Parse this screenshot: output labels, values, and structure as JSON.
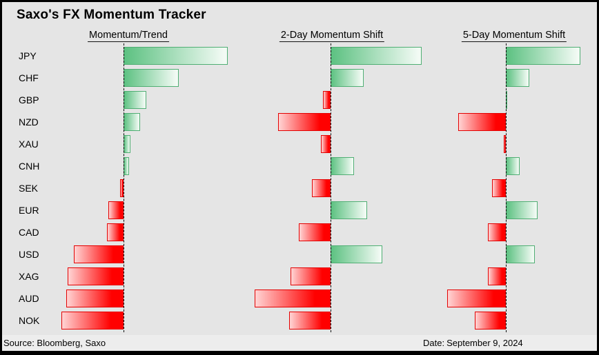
{
  "title": "Saxo's FX Momentum Tracker",
  "footer": {
    "source": "Source: Bloomberg, Saxo",
    "date_label": "Date:",
    "date_value": "September 9, 2024"
  },
  "colors": {
    "background": "#e5e5e5",
    "footer_background": "#ededed",
    "frame": "#000000",
    "positive_border": "#4fae73",
    "positive_fill_start": "#5cc181",
    "positive_fill_end": "#f2faf4",
    "negative_border": "#e30000",
    "negative_fill_start": "#ffd4d4",
    "negative_fill_end": "#ff0000",
    "zero_line": "#000000"
  },
  "chart_data": {
    "type": "bar",
    "orientation": "horizontal",
    "title": "Saxo's FX Momentum Tracker",
    "categories": [
      "JPY",
      "CHF",
      "GBP",
      "NZD",
      "XAU",
      "CNH",
      "SEK",
      "EUR",
      "CAD",
      "USD",
      "XAG",
      "AUD",
      "NOK"
    ],
    "series": [
      {
        "name": "Momentum/Trend",
        "values": [
          1.51,
          0.8,
          0.33,
          0.24,
          0.1,
          0.08,
          -0.05,
          -0.22,
          -0.24,
          -0.72,
          -0.81,
          -0.83,
          -0.9
        ]
      },
      {
        "name": "2-Day Momentum Shift",
        "values": [
          1.32,
          0.48,
          -0.11,
          -0.76,
          -0.14,
          0.34,
          -0.27,
          0.53,
          -0.46,
          0.75,
          -0.58,
          -1.1,
          -0.6
        ]
      },
      {
        "name": "5-Day Momentum Shift",
        "values": [
          1.08,
          0.34,
          0.02,
          -0.69,
          -0.03,
          0.2,
          -0.2,
          0.46,
          -0.26,
          0.42,
          -0.26,
          -0.85,
          -0.45
        ]
      }
    ],
    "value_axis": "hidden",
    "value_units": "relative momentum score (positive = green, negative = red)",
    "legend": "none",
    "grid": "none",
    "zero_line": "dashed vertical per panel"
  }
}
